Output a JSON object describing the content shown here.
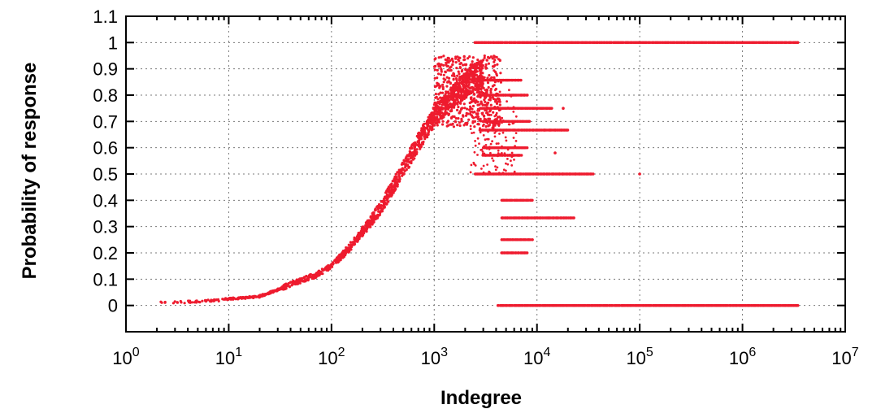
{
  "chart_data": {
    "type": "scatter",
    "title": "",
    "xlabel": "Indegree",
    "ylabel": "Probability of response",
    "xscale": "log",
    "xlim": [
      1,
      10000000
    ],
    "ylim": [
      -0.1,
      1.1
    ],
    "grid": true,
    "legend": "none",
    "color": "#ee1b2e",
    "x_ticks": [
      {
        "value": 1,
        "base": "10",
        "exp": "0"
      },
      {
        "value": 10,
        "base": "10",
        "exp": "1"
      },
      {
        "value": 100,
        "base": "10",
        "exp": "2"
      },
      {
        "value": 1000,
        "base": "10",
        "exp": "3"
      },
      {
        "value": 10000,
        "base": "10",
        "exp": "4"
      },
      {
        "value": 100000,
        "base": "10",
        "exp": "5"
      },
      {
        "value": 1000000,
        "base": "10",
        "exp": "6"
      },
      {
        "value": 10000000,
        "base": "10",
        "exp": "7"
      }
    ],
    "y_ticks": [
      {
        "value": 0,
        "label": "0"
      },
      {
        "value": 0.1,
        "label": "0.1"
      },
      {
        "value": 0.2,
        "label": "0.2"
      },
      {
        "value": 0.3,
        "label": "0.3"
      },
      {
        "value": 0.4,
        "label": "0.4"
      },
      {
        "value": 0.5,
        "label": "0.5"
      },
      {
        "value": 0.6,
        "label": "0.6"
      },
      {
        "value": 0.7,
        "label": "0.7"
      },
      {
        "value": 0.8,
        "label": "0.8"
      },
      {
        "value": 0.9,
        "label": "0.9"
      },
      {
        "value": 1,
        "label": "1"
      },
      {
        "value": 1.1,
        "label": "1.1"
      }
    ],
    "trend_points": [
      [
        2,
        0.01
      ],
      [
        3,
        0.012
      ],
      [
        5,
        0.015
      ],
      [
        8,
        0.02
      ],
      [
        10,
        0.025
      ],
      [
        15,
        0.03
      ],
      [
        20,
        0.035
      ],
      [
        30,
        0.06
      ],
      [
        40,
        0.08
      ],
      [
        50,
        0.095
      ],
      [
        70,
        0.115
      ],
      [
        100,
        0.15
      ],
      [
        150,
        0.22
      ],
      [
        200,
        0.28
      ],
      [
        300,
        0.37
      ],
      [
        500,
        0.52
      ],
      [
        700,
        0.62
      ],
      [
        1000,
        0.72
      ],
      [
        1500,
        0.79
      ],
      [
        2000,
        0.84
      ],
      [
        2500,
        0.87
      ],
      [
        3000,
        0.88
      ]
    ],
    "horizontal_bands": [
      {
        "y": 1.0,
        "x_from": 2500,
        "x_to": 3500000
      },
      {
        "y": 0.0,
        "x_from": 4200,
        "x_to": 3500000
      },
      {
        "y": 0.5,
        "x_from": 2500,
        "x_to": 35000
      },
      {
        "y": 0.667,
        "x_from": 2800,
        "x_to": 20000
      },
      {
        "y": 0.75,
        "x_from": 2800,
        "x_to": 14000
      },
      {
        "y": 0.8,
        "x_from": 2800,
        "x_to": 8000
      },
      {
        "y": 0.333,
        "x_from": 4500,
        "x_to": 23000
      },
      {
        "y": 0.4,
        "x_from": 4500,
        "x_to": 9000
      },
      {
        "y": 0.25,
        "x_from": 4500,
        "x_to": 9000
      },
      {
        "y": 0.2,
        "x_from": 4500,
        "x_to": 8000
      },
      {
        "y": 0.6,
        "x_from": 3000,
        "x_to": 8000
      },
      {
        "y": 0.571,
        "x_from": 3000,
        "x_to": 7000
      },
      {
        "y": 0.857,
        "x_from": 3000,
        "x_to": 7000
      },
      {
        "y": 0.7,
        "x_from": 3000,
        "x_to": 8500
      }
    ],
    "isolated_points": [
      [
        100000,
        0.5
      ],
      [
        18000,
        0.75
      ],
      [
        15000,
        0.58
      ]
    ]
  }
}
